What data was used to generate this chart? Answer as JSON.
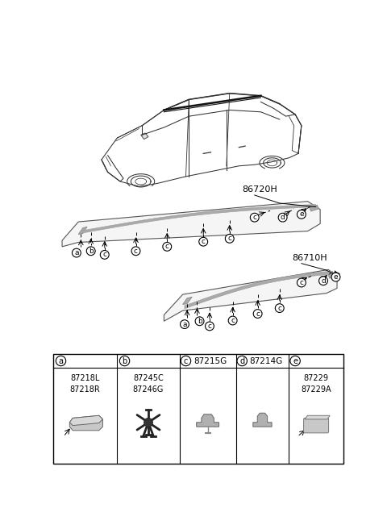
{
  "bg_color": "#ffffff",
  "fig_width": 4.8,
  "fig_height": 6.56,
  "dpi": 100,
  "labels": {
    "lm": "86720H",
    "rm": "86710H"
  },
  "parts": {
    "a": [
      "87218L",
      "87218R"
    ],
    "b": [
      "87245C",
      "87246G"
    ],
    "c": "87215G",
    "d": "87214G",
    "e": [
      "87229",
      "87229A"
    ]
  },
  "circle_labels": [
    "a",
    "b",
    "c",
    "d",
    "e"
  ]
}
